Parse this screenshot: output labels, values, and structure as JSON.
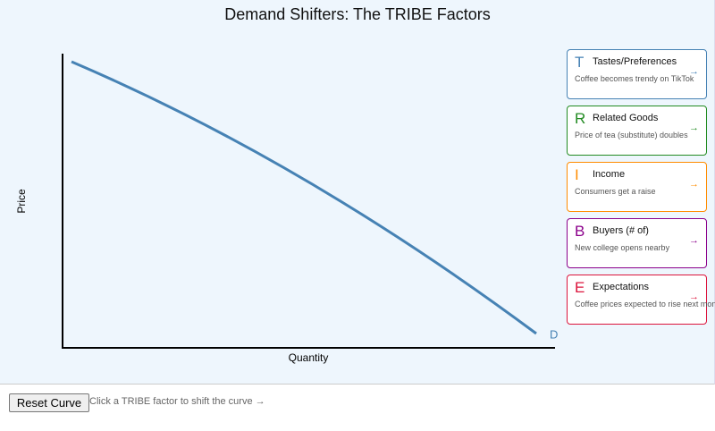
{
  "header": {
    "title": "Demand Shifters: The TRIBE Factors"
  },
  "graph": {
    "y_label": "Price",
    "x_label": "Quantity",
    "curve_label": "D"
  },
  "factors": [
    {
      "letter": "T",
      "name": "Tastes/Preferences",
      "description": "Coffee becomes trendy on TikTok",
      "arrow": "→",
      "color": "#4682b4"
    },
    {
      "letter": "R",
      "name": "Related Goods",
      "description": "Price of tea (substitute) doubles",
      "arrow": "→",
      "color": "#228b22"
    },
    {
      "letter": "I",
      "name": "Income",
      "description": "Consumers get a raise",
      "arrow": "→",
      "color": "#ff8c00"
    },
    {
      "letter": "B",
      "name": "Buyers (# of)",
      "description": "New college opens nearby",
      "arrow": "→",
      "color": "#8b008b"
    },
    {
      "letter": "E",
      "name": "Expectations",
      "description": "Coffee prices expected to rise next month",
      "arrow": "→",
      "color": "#dc143c"
    }
  ],
  "footer": {
    "button": "Reset Curve",
    "hint": "Click a TRIBE factor to shift the curve →"
  }
}
